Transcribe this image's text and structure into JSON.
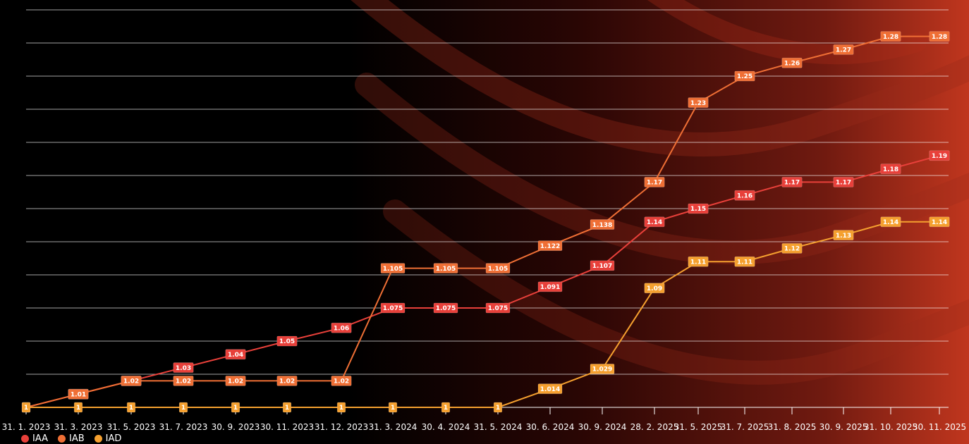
{
  "chart_data": {
    "type": "line",
    "grid": true,
    "legend_position": "bottom-left",
    "categories": [
      "31. 1. 2023",
      "31. 3. 2023",
      "31. 5. 2023",
      "31. 7. 2023",
      "30. 9. 2023",
      "30. 11. 2023",
      "31. 12. 2023",
      "31. 3. 2024",
      "30. 4. 2024",
      "31. 5. 2024",
      "30. 6. 2024",
      "30. 9. 2024",
      "28. 2. 2025",
      "31. 5. 2025",
      "31. 7. 2025",
      "31. 8. 2025",
      "30. 9. 2025",
      "31. 10. 2025",
      "30. 11. 2025"
    ],
    "series": [
      {
        "name": "IAA",
        "color": "#e8403a",
        "values": [
          1,
          1.01,
          1.02,
          1.03,
          1.04,
          1.05,
          1.06,
          1.075,
          1.075,
          1.075,
          1.091,
          1.107,
          1.14,
          1.15,
          1.16,
          1.17,
          1.17,
          1.18,
          1.19
        ],
        "labels": [
          "1",
          "1.01",
          "1.02",
          "1.03",
          "1.04",
          "1.05",
          "1.06",
          "1.075",
          "1.075",
          "1.075",
          "1.091",
          "1.107",
          "1.14",
          "1.15",
          "1.16",
          "1.17",
          "1.17",
          "1.18",
          "1.19"
        ]
      },
      {
        "name": "IAB",
        "color": "#ef6f35",
        "values": [
          1,
          1.01,
          1.02,
          1.02,
          1.02,
          1.02,
          1.02,
          1.105,
          1.105,
          1.105,
          1.122,
          1.138,
          1.17,
          1.23,
          1.25,
          1.26,
          1.27,
          1.28,
          1.28
        ],
        "labels": [
          "1",
          "1.01",
          "1.02",
          "1.02",
          "1.02",
          "1.02",
          "1.02",
          "1.105",
          "1.105",
          "1.105",
          "1.122",
          "1.138",
          "1.17",
          "1.23",
          "1.25",
          "1.26",
          "1.27",
          "1.28",
          "1.28"
        ]
      },
      {
        "name": "IAD",
        "color": "#f5a02f",
        "values": [
          1,
          1,
          1,
          1,
          1,
          1,
          1,
          1,
          1,
          1,
          1.014,
          1.029,
          1.09,
          1.11,
          1.11,
          1.12,
          1.13,
          1.14,
          1.14
        ],
        "labels": [
          "1",
          "1",
          "1",
          "1",
          "1",
          "1",
          "1",
          "1",
          "1",
          "1",
          "1.014",
          "1.029",
          "1.09",
          "1.11",
          "1.11",
          "1.12",
          "1.13",
          "1.14",
          "1.14"
        ]
      }
    ],
    "ylim": [
      1,
      1.3
    ],
    "title": "",
    "xlabel": "",
    "ylabel": ""
  }
}
